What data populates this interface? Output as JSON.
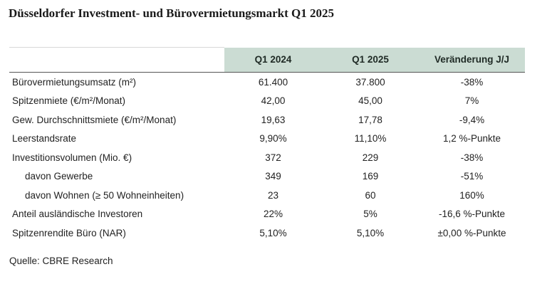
{
  "title": "Düsseldorfer Investment- und Bürovermietungsmarkt Q1 2025",
  "table": {
    "header": [
      "",
      "Q1 2024",
      "Q1 2025",
      "Veränderung J/J"
    ],
    "rows": [
      {
        "label": "Bürovermietungsumsatz (m²)",
        "q1_2024": "61.400",
        "q1_2025": "37.800",
        "change": "-38%"
      },
      {
        "label": "Spitzenmiete (€/m²/Monat)",
        "q1_2024": "42,00",
        "q1_2025": "45,00",
        "change": "7%"
      },
      {
        "label": "Gew. Durchschnittsmiete (€/m²/Monat)",
        "q1_2024": "19,63",
        "q1_2025": "17,78",
        "change": "-9,4%"
      },
      {
        "label": "Leerstandsrate",
        "q1_2024": "9,90%",
        "q1_2025": "11,10%",
        "change": "1,2 %-Punkte"
      },
      {
        "label": "Investitionsvolumen (Mio. €)",
        "q1_2024": "372",
        "q1_2025": "229",
        "change": "-38%"
      },
      {
        "label": "davon Gewerbe",
        "q1_2024": "349",
        "q1_2025": "169",
        "change": "-51%"
      },
      {
        "label": "davon Wohnen (≥ 50 Wohneinheiten)",
        "q1_2024": "23",
        "q1_2025": "60",
        "change": "160%"
      },
      {
        "label": "Anteil ausländische Investoren",
        "q1_2024": "22%",
        "q1_2025": "5%",
        "change": "-16,6 %-Punkte"
      },
      {
        "label": "Spitzenrendite Büro (NAR)",
        "q1_2024": "5,10%",
        "q1_2025": "5,10%",
        "change": "±0,00 %-Punkte"
      }
    ]
  },
  "source": "Quelle: CBRE Research",
  "colors": {
    "header_bg": "#cbdcd3",
    "text": "#222222"
  }
}
